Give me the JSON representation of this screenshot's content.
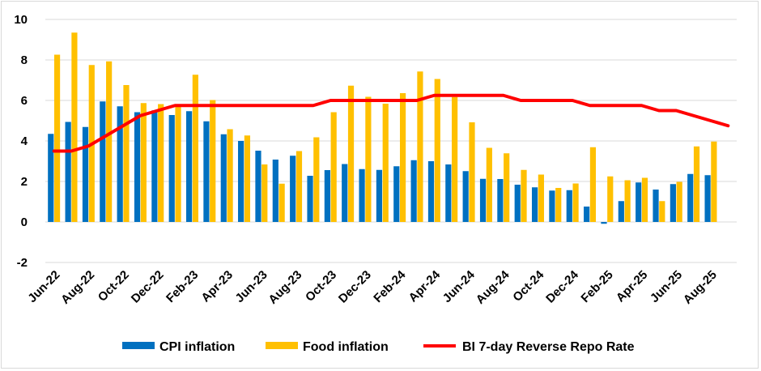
{
  "chart_data": {
    "type": "bar",
    "x": [
      "Jun-22",
      "Jul-22",
      "Aug-22",
      "Sep-22",
      "Oct-22",
      "Nov-22",
      "Dec-22",
      "Jan-23",
      "Feb-23",
      "Mar-23",
      "Apr-23",
      "May-23",
      "Jun-23",
      "Jul-23",
      "Aug-23",
      "Sep-23",
      "Oct-23",
      "Nov-23",
      "Dec-23",
      "Jan-24",
      "Feb-24",
      "Mar-24",
      "Apr-24",
      "May-24",
      "Jun-24",
      "Jul-24",
      "Aug-24",
      "Sep-24",
      "Oct-24",
      "Nov-24",
      "Dec-24",
      "Jan-25",
      "Feb-25",
      "Mar-25",
      "Apr-25",
      "May-25",
      "Jun-25",
      "Jul-25",
      "Aug-25",
      "Sep-25"
    ],
    "tick_labels": [
      "Jun-22",
      "Aug-22",
      "Oct-22",
      "Dec-22",
      "Feb-23",
      "Apr-23",
      "Jun-23",
      "Aug-23",
      "Oct-23",
      "Dec-23",
      "Feb-24",
      "Apr-24",
      "Jun-24",
      "Aug-24",
      "Oct-24",
      "Dec-24",
      "Feb-25",
      "Apr-25",
      "Jun-25",
      "Aug-25"
    ],
    "series": [
      {
        "name": "CPI inflation",
        "type": "bar",
        "color": "#0070C0",
        "values": [
          4.35,
          4.94,
          4.69,
          5.95,
          5.71,
          5.42,
          5.51,
          5.28,
          5.47,
          4.97,
          4.33,
          4.0,
          3.52,
          3.08,
          3.27,
          2.28,
          2.56,
          2.86,
          2.61,
          2.57,
          2.75,
          3.05,
          3.0,
          2.84,
          2.51,
          2.13,
          2.12,
          1.84,
          1.71,
          1.55,
          1.57,
          0.76,
          -0.09,
          1.03,
          1.95,
          1.6,
          1.87,
          2.37,
          2.31,
          null
        ]
      },
      {
        "name": "Food inflation",
        "type": "bar",
        "color": "#FFC000",
        "values": [
          8.26,
          9.35,
          7.75,
          7.93,
          6.76,
          5.87,
          5.82,
          5.8,
          7.27,
          6.02,
          4.58,
          4.27,
          2.84,
          1.89,
          3.5,
          4.18,
          5.42,
          6.73,
          6.18,
          5.84,
          6.36,
          7.43,
          7.06,
          6.17,
          4.92,
          3.66,
          3.39,
          2.57,
          2.34,
          1.68,
          1.9,
          3.69,
          2.25,
          2.06,
          2.18,
          1.03,
          1.98,
          3.73,
          3.97,
          null
        ]
      },
      {
        "name": "BI 7-day Reverse Repo Rate",
        "type": "line",
        "color": "#FF0000",
        "values": [
          3.5,
          3.5,
          3.75,
          4.25,
          4.75,
          5.25,
          5.5,
          5.75,
          5.75,
          5.75,
          5.75,
          5.75,
          5.75,
          5.75,
          5.75,
          5.75,
          6.0,
          6.0,
          6.0,
          6.0,
          6.0,
          6.0,
          6.25,
          6.25,
          6.25,
          6.25,
          6.25,
          6.0,
          6.0,
          6.0,
          6.0,
          5.75,
          5.75,
          5.75,
          5.75,
          5.5,
          5.5,
          5.25,
          5.0,
          4.75
        ]
      }
    ],
    "ylim": [
      -2,
      10
    ],
    "yticks": [
      -2,
      0,
      2,
      4,
      6,
      8,
      10
    ],
    "grid": true,
    "legend": "bottom",
    "title": "",
    "xlabel": "",
    "ylabel": ""
  }
}
